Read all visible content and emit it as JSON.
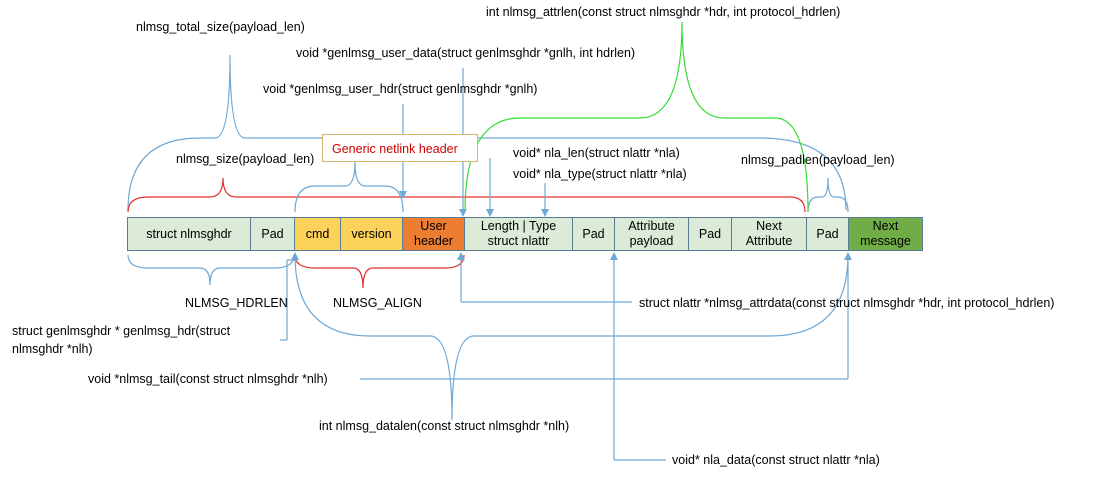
{
  "colors": {
    "cell_default": "#dbebd8",
    "cell_border": "#5a7d95",
    "cell_yellow": "#fdd25a",
    "cell_orange": "#ed7d31",
    "cell_green": "#70ad47",
    "connector_blue": "#6ea8d6",
    "brace_red": "#e03030",
    "brace_green": "#33dd33",
    "header_label_red": "#d00000"
  },
  "cells": [
    {
      "id": "struct-nlmsghdr",
      "text": "struct nlmsghdr"
    },
    {
      "id": "pad-1",
      "text": "Pad"
    },
    {
      "id": "cmd",
      "text": "cmd"
    },
    {
      "id": "version",
      "text": "version"
    },
    {
      "id": "user-header",
      "text": "User header"
    },
    {
      "id": "length-type",
      "text": "Length | Type struct nlattr"
    },
    {
      "id": "pad-2",
      "text": "Pad"
    },
    {
      "id": "attribute-payload",
      "text": "Attribute payload"
    },
    {
      "id": "pad-3",
      "text": "Pad"
    },
    {
      "id": "next-attribute",
      "text": "Next Attribute"
    },
    {
      "id": "pad-4",
      "text": "Pad"
    },
    {
      "id": "next-message",
      "text": "Next message"
    }
  ],
  "labels": {
    "nlmsg_total_size": "nlmsg_total_size(payload_len)",
    "nlmsg_attrlen": "int nlmsg_attrlen(const struct nlmsghdr *hdr, int protocol_hdrlen)",
    "genlmsg_user_data": "void *genlmsg_user_data(struct genlmsghdr *gnlh, int hdrlen)",
    "genlmsg_user_hdr": "void *genlmsg_user_hdr(struct genlmsghdr *gnlh)",
    "generic_netlink_header": "Generic netlink header",
    "nlmsg_size": "nlmsg_size(payload_len)",
    "nla_len": "void* nla_len(struct nlattr *nla)",
    "nla_type": "void* nla_type(struct nlattr *nla)",
    "nlmsg_padlen": "nlmsg_padlen(payload_len)",
    "nlmsg_hdrlen": "NLMSG_HDRLEN",
    "nlmsg_align": "NLMSG_ALIGN",
    "nlmsg_attrdata": "struct nlattr *nlmsg_attrdata(const struct nlmsghdr *hdr, int protocol_hdrlen)",
    "genlmsg_hdr": "struct genlmsghdr * genlmsg_hdr(struct nlmsghdr *nlh)",
    "nlmsg_tail": "void *nlmsg_tail(const struct nlmsghdr *nlh)",
    "nlmsg_datalen": "int nlmsg_datalen(const struct nlmsghdr *nlh)",
    "nla_data": "void* nla_data(const struct nlattr *nla)"
  }
}
